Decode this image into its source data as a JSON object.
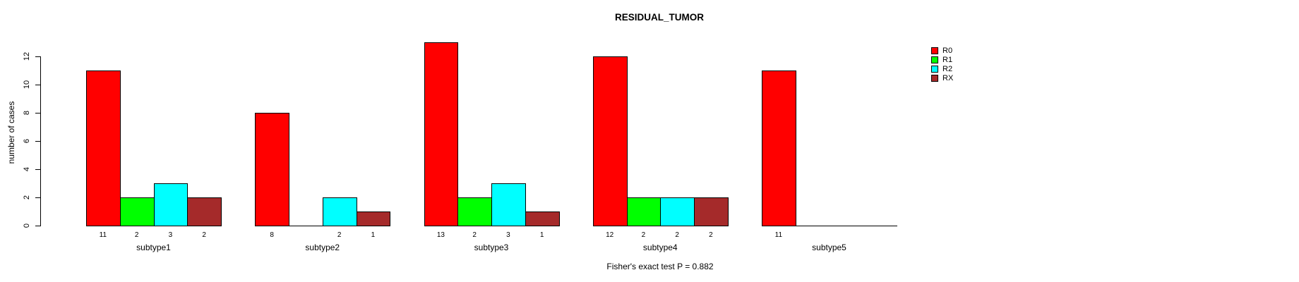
{
  "chart_data": {
    "type": "bar",
    "grouped": true,
    "title": "RESIDUAL_TUMOR",
    "ylabel": "number of cases",
    "xlabel": "",
    "annotation": "Fisher's exact test P = 0.882",
    "categories": [
      "subtype1",
      "subtype2",
      "subtype3",
      "subtype4",
      "subtype5"
    ],
    "series": [
      {
        "name": "R0",
        "color": "#FF0000",
        "values": [
          11,
          8,
          13,
          12,
          11
        ]
      },
      {
        "name": "R1",
        "color": "#00FF00",
        "values": [
          2,
          0,
          2,
          2,
          0
        ]
      },
      {
        "name": "R2",
        "color": "#00FFFF",
        "values": [
          3,
          2,
          3,
          2,
          0
        ]
      },
      {
        "name": "RX",
        "color": "#A52A2A",
        "values": [
          2,
          1,
          1,
          2,
          0
        ]
      }
    ],
    "bar_value_labels": {
      "shown": true,
      "zero_values_hidden": true
    },
    "yticks": [
      0,
      2,
      4,
      6,
      8,
      10,
      12
    ],
    "ylim": [
      0,
      13
    ],
    "grid": false,
    "legend_position": "right",
    "legend_entries": [
      "R0",
      "R1",
      "R2",
      "RX"
    ],
    "axis_color": "#000000",
    "background_color": "#FFFFFF"
  }
}
